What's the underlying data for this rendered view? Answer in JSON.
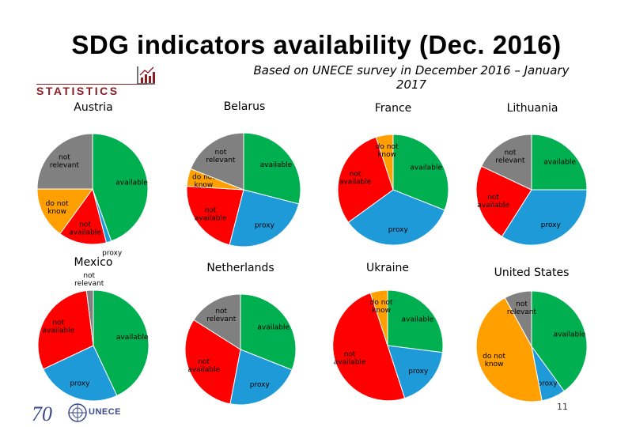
{
  "header": {
    "title": "SDG indicators availability (Dec. 2016)",
    "subtitle": "Based on UNECE survey in December 2016 – January 2017",
    "brand": "STATISTICS"
  },
  "colors": {
    "available": "#00b050",
    "proxy": "#1f9ad8",
    "not available": "#ff0000",
    "do not know": "#ffa000",
    "not relevant": "#808080"
  },
  "chart_data": [
    {
      "type": "pie",
      "title": "Austria",
      "categories": [
        "available",
        "proxy",
        "not available",
        "do not know",
        "not relevant"
      ],
      "values": [
        44.5,
        1.5,
        14,
        15,
        25
      ]
    },
    {
      "type": "pie",
      "title": "Belarus",
      "categories": [
        "available",
        "proxy",
        "not available",
        "do not know",
        "not relevant"
      ],
      "values": [
        29,
        25,
        22,
        5,
        19
      ]
    },
    {
      "type": "pie",
      "title": "France",
      "categories": [
        "available",
        "proxy",
        "not available",
        "do not know",
        "not relevant"
      ],
      "values": [
        31,
        34,
        30,
        5,
        0
      ]
    },
    {
      "type": "pie",
      "title": "Lithuania",
      "categories": [
        "available",
        "proxy",
        "not available",
        "do not know",
        "not relevant"
      ],
      "values": [
        25,
        34,
        23,
        0,
        18
      ]
    },
    {
      "type": "pie",
      "title": "Mexico",
      "categories": [
        "available",
        "proxy",
        "not available",
        "do not know",
        "not relevant"
      ],
      "values": [
        43,
        25,
        30,
        0,
        2
      ]
    },
    {
      "type": "pie",
      "title": "Netherlands",
      "categories": [
        "available",
        "proxy",
        "not available",
        "do not know",
        "not relevant"
      ],
      "values": [
        31,
        22,
        31,
        0,
        16
      ]
    },
    {
      "type": "pie",
      "title": "Ukraine",
      "categories": [
        "available",
        "proxy",
        "not available",
        "do not know",
        "not relevant"
      ],
      "values": [
        27,
        18,
        50,
        5,
        0
      ]
    },
    {
      "type": "pie",
      "title": "United States",
      "categories": [
        "available",
        "proxy",
        "not available",
        "do not know",
        "not relevant"
      ],
      "values": [
        40,
        7,
        0,
        45,
        8
      ]
    }
  ],
  "footer": {
    "anniversary": "70",
    "org": "UNECE",
    "page": "11"
  }
}
